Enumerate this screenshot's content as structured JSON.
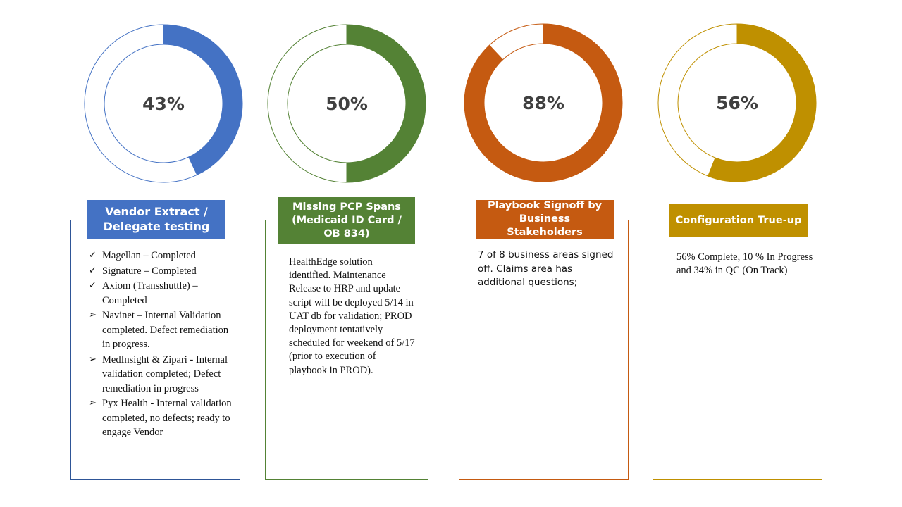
{
  "chart_data": [
    {
      "type": "pie",
      "value": 43,
      "label": "43%",
      "color": "#4472C4",
      "title": "Vendor Extract / Delegate testing"
    },
    {
      "type": "pie",
      "value": 50,
      "label": "50%",
      "color": "#548235",
      "title": "Missing PCP Spans (Medicaid ID Card / OB 834)"
    },
    {
      "type": "pie",
      "value": 88,
      "label": "88%",
      "color": "#C55A11",
      "title": "Playbook Signoff by Business Stakeholders"
    },
    {
      "type": "pie",
      "value": 56,
      "label": "56%",
      "color": "#BF9000",
      "title": "Configuration True-up"
    }
  ],
  "cards": [
    {
      "header": "Vendor Extract / Delegate testing",
      "items": [
        {
          "mark": "✓",
          "text": "Magellan – Completed"
        },
        {
          "mark": "✓",
          "text": "Signature – Completed"
        },
        {
          "mark": "✓",
          "text": " Axiom (Transshuttle) – Completed"
        },
        {
          "mark": "➢",
          "text": "Navinet – Internal Validation completed. Defect remediation in progress."
        },
        {
          "mark": "➢",
          "text": " MedInsight & Zipari - Internal validation completed; Defect remediation in progress"
        },
        {
          "mark": "➢",
          "text": "Pyx Health - Internal validation completed, no defects; ready to engage Vendor"
        }
      ]
    },
    {
      "header": "Missing PCP Spans (Medicaid ID Card / OB 834)",
      "body": "HealthEdge solution identified. Maintenance Release to HRP and update script will be deployed 5/14 in UAT db for validation; PROD deployment tentatively scheduled for weekend of 5/17 (prior to execution of playbook in PROD)."
    },
    {
      "header": "Playbook Signoff by Business Stakeholders",
      "body": "7 of 8 business areas signed off. Claims area has additional questions;"
    },
    {
      "header": "Configuration True-up",
      "body": "56% Complete, 10 % In Progress and 34% in QC (On Track)"
    }
  ]
}
